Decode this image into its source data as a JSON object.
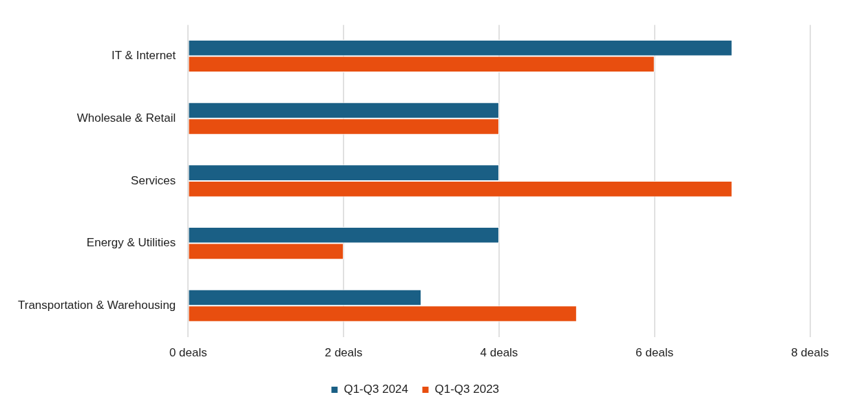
{
  "chart_data": {
    "type": "bar",
    "orientation": "horizontal",
    "categories": [
      "IT & Internet",
      "Wholesale & Retail",
      "Services",
      "Energy & Utilities",
      "Transportation & Warehousing"
    ],
    "series": [
      {
        "name": "Q1-Q3 2024",
        "color": "#1a5f85",
        "values": [
          7,
          4,
          4,
          4,
          3
        ]
      },
      {
        "name": "Q1-Q3 2023",
        "color": "#e84e0f",
        "values": [
          6,
          4,
          7,
          2,
          5
        ]
      }
    ],
    "xlim": [
      0,
      8
    ],
    "xticks": [
      {
        "value": 0,
        "label": "0 deals"
      },
      {
        "value": 2,
        "label": "2 deals"
      },
      {
        "value": 4,
        "label": "4 deals"
      },
      {
        "value": 6,
        "label": "6 deals"
      },
      {
        "value": 8,
        "label": "8 deals"
      }
    ],
    "grid": "x",
    "legend": "bottom"
  }
}
